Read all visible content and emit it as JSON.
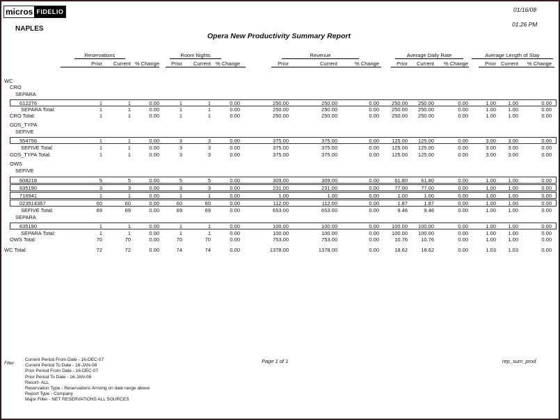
{
  "logo": {
    "left": "micros",
    "right": "FIDELIO"
  },
  "header": {
    "property": "NAPLES",
    "title": "Opera New Productivity Summary Report",
    "date": "01/16/08",
    "time": "01:26 PM"
  },
  "groups": [
    "Reservations",
    "Room Nights",
    "Revenue",
    "Average Daily Rate",
    "Average Length of Stay"
  ],
  "columns": [
    "Prior",
    "Current",
    "% Change",
    "Prior",
    "Current",
    "% Change",
    "Prior",
    "Current",
    "% Change",
    "Prior",
    "Current",
    "% Change",
    "Prior",
    "Current",
    "% Change"
  ],
  "rows": [
    {
      "label": "WC",
      "level": 0
    },
    {
      "label": "CRO",
      "level": 1
    },
    {
      "label": "SEPARA",
      "level": 2
    },
    {
      "label": "612276",
      "level": 3,
      "boxed": true,
      "values": [
        "1",
        "1",
        "0.00",
        "1",
        "1",
        "0.00",
        "250.00",
        "250.00",
        "0.00",
        "250.00",
        "250.00",
        "0.00",
        "1.00",
        "1.00",
        "0.00"
      ]
    },
    {
      "label": "SEPARA Total:",
      "level": 3,
      "values": [
        "1",
        "1",
        "0.00",
        "1",
        "1",
        "0.00",
        "250.00",
        "250.00",
        "0.00",
        "250.00",
        "250.00",
        "0.00",
        "1.00",
        "1.00",
        "0.00"
      ]
    },
    {
      "label": "CRO Total:",
      "level": 1,
      "values": [
        "1",
        "1",
        "0.00",
        "1",
        "1",
        "0.00",
        "250.00",
        "250.00",
        "0.00",
        "250.00",
        "250.00",
        "0.00",
        "1.00",
        "1.00",
        "0.00"
      ]
    },
    {
      "label": "GDS_TYPA",
      "level": 1
    },
    {
      "label": "SEFIVE",
      "level": 2
    },
    {
      "label": "554756",
      "level": 3,
      "boxed": true,
      "values": [
        "1",
        "1",
        "0.00",
        "3",
        "3",
        "0.00",
        "375.00",
        "375.00",
        "0.00",
        "125.00",
        "125.00",
        "0.00",
        "3.00",
        "3.00",
        "0.00"
      ]
    },
    {
      "label": "SEFIVE Total:",
      "level": 3,
      "values": [
        "1",
        "1",
        "0.00",
        "3",
        "3",
        "0.00",
        "375.00",
        "375.00",
        "0.00",
        "125.00",
        "125.00",
        "0.00",
        "3.00",
        "3.00",
        "0.00"
      ]
    },
    {
      "label": "GDS_TYPA Total:",
      "level": 1,
      "values": [
        "1",
        "1",
        "0.00",
        "3",
        "3",
        "0.00",
        "375.00",
        "375.00",
        "0.00",
        "125.00",
        "125.00",
        "0.00",
        "3.00",
        "3.00",
        "0.00"
      ]
    },
    {
      "label": "OWS",
      "level": 1
    },
    {
      "label": "SEFIVE",
      "level": 2
    },
    {
      "label": "608218",
      "level": 3,
      "boxed": true,
      "values": [
        "5",
        "5",
        "0.00",
        "5",
        "5",
        "0.00",
        "309.00",
        "309.00",
        "0.00",
        "61.80",
        "61.80",
        "0.00",
        "1.00",
        "1.00",
        "0.00"
      ]
    },
    {
      "label": "635190",
      "level": 3,
      "boxed": true,
      "values": [
        "3",
        "3",
        "0.00",
        "3",
        "3",
        "0.00",
        "231.00",
        "231.00",
        "0.00",
        "77.00",
        "77.00",
        "0.00",
        "1.00",
        "1.00",
        "0.00"
      ]
    },
    {
      "label": "716941",
      "level": 3,
      "boxed": true,
      "values": [
        "1",
        "1",
        "0.00",
        "1",
        "1",
        "0.00",
        "1.00",
        "1.00",
        "0.00",
        "1.00",
        "1.00",
        "0.00",
        "1.00",
        "1.00",
        "0.00"
      ]
    },
    {
      "label": "023514367",
      "level": 3,
      "boxed": true,
      "values": [
        "60",
        "60",
        "0.00",
        "60",
        "60",
        "0.00",
        "112.00",
        "112.00",
        "0.00",
        "1.87",
        "1.87",
        "0.00",
        "1.00",
        "1.00",
        "0.00"
      ]
    },
    {
      "label": "SEFIVE Total:",
      "level": 3,
      "values": [
        "69",
        "69",
        "0.00",
        "69",
        "69",
        "0.00",
        "653.00",
        "653.00",
        "0.00",
        "9.46",
        "9.46",
        "0.00",
        "1.00",
        "1.00",
        "0.00"
      ]
    },
    {
      "label": "SEPARA",
      "level": 2
    },
    {
      "label": "635190",
      "level": 3,
      "boxed": true,
      "values": [
        "1",
        "1",
        "0.00",
        "1",
        "1",
        "0.00",
        "100.00",
        "100.00",
        "0.00",
        "100.00",
        "100.00",
        "0.00",
        "1.00",
        "1.00",
        "0.00"
      ]
    },
    {
      "label": "SEPARA Total:",
      "level": 3,
      "values": [
        "1",
        "1",
        "0.00",
        "1",
        "1",
        "0.00",
        "100.00",
        "100.00",
        "0.00",
        "100.00",
        "100.00",
        "0.00",
        "1.00",
        "1.00",
        "0.00"
      ]
    },
    {
      "label": "OWS Total:",
      "level": 1,
      "values": [
        "70",
        "70",
        "0.00",
        "70",
        "70",
        "0.00",
        "753.00",
        "753.00",
        "0.00",
        "10.76",
        "10.76",
        "0.00",
        "1.00",
        "1.00",
        "0.00"
      ]
    },
    {
      "label": "WC Total:",
      "level": 0,
      "values": [
        "72",
        "72",
        "0.00",
        "74",
        "74",
        "0.00",
        "1378.00",
        "1378.00",
        "0.00",
        "18.62",
        "18.62",
        "0.00",
        "1.03",
        "1.03",
        "0.00"
      ]
    }
  ],
  "footer": {
    "filter_label": "Filter",
    "filters": [
      "Current Period From Date -  16-DEC-07",
      "Current Period To Date -  16-JAN-08",
      "Prior Period From Date -  16-DEC-07",
      "Prior Period To Date -  16-JAN-08",
      "Resort-  ALL",
      "Reservation Type -  Reservations Arriving on date range above",
      "Report Type -  Company",
      "Major Filter -  NET RESERVATIONS ALL SOURCES"
    ],
    "page": "Page 1 of 1",
    "report_id": "rep_sum_prod"
  }
}
